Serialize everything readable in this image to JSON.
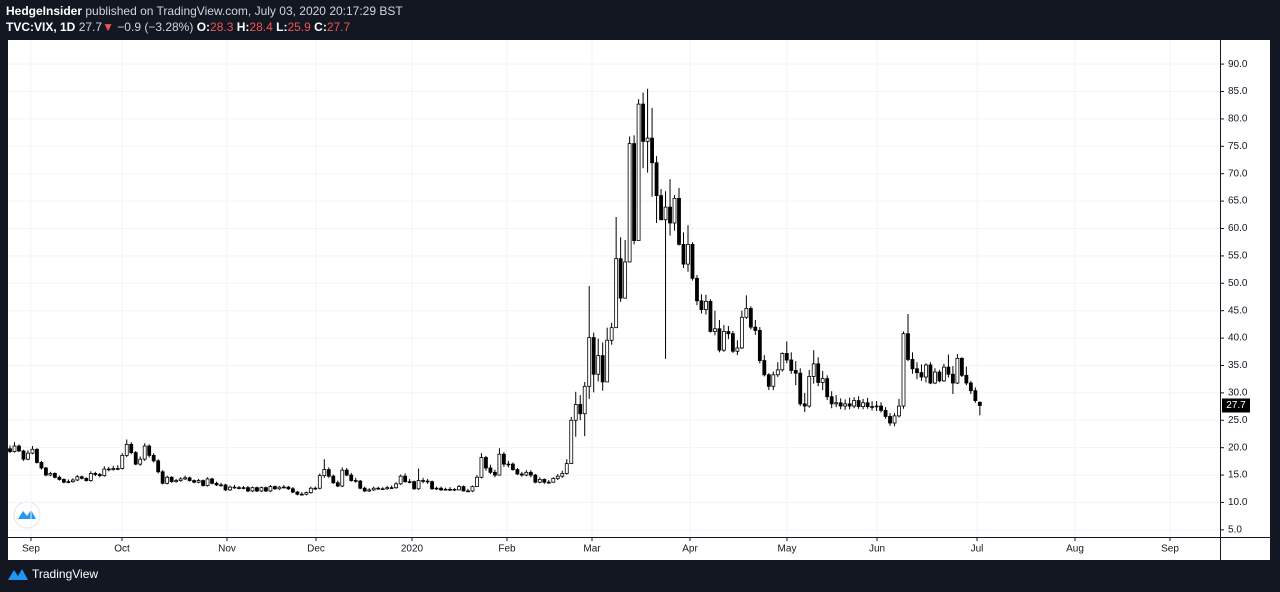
{
  "header": {
    "publisher": "HedgeInsider",
    "published": "published on TradingView.com, July 03, 2020 20:17:29 BST",
    "symbol": "TVC:VIX, 1D",
    "last": "27.7",
    "arrow": "▼",
    "change": "−0.9 (−3.28%)",
    "o_label": "O:",
    "o": "28.3",
    "h_label": "H:",
    "h": "28.4",
    "l_label": "L:",
    "l": "25.9",
    "c_label": "C:",
    "c": "27.7"
  },
  "footer": {
    "brand": "TradingView"
  },
  "chart_data": {
    "type": "candlestick",
    "up_color": "#ffffff",
    "down_color": "#000000",
    "wick_color": "#000000",
    "grid": true,
    "month_labels": [
      "Sep",
      "Oct",
      "Nov",
      "Dec",
      "2020",
      "Feb",
      "Mar",
      "Apr",
      "May",
      "Jun",
      "Jul",
      "Aug",
      "Sep"
    ],
    "ylim": [
      3.7,
      94.4
    ],
    "yticks": [
      {
        "value": 5,
        "label": "5.0"
      },
      {
        "value": 10,
        "label": "10.0"
      },
      {
        "value": 15,
        "label": "15.0"
      },
      {
        "value": 20,
        "label": "20.0"
      },
      {
        "value": 25,
        "label": "25.0"
      },
      {
        "value": 30,
        "label": "30.0"
      },
      {
        "value": 35,
        "label": "35.0"
      },
      {
        "value": 40,
        "label": "40.0"
      },
      {
        "value": 45,
        "label": "45.0"
      },
      {
        "value": 50,
        "label": "50.0"
      },
      {
        "value": 55,
        "label": "55.0"
      },
      {
        "value": 60,
        "label": "60.0"
      },
      {
        "value": 65,
        "label": "65.0"
      },
      {
        "value": 70,
        "label": "70.0"
      },
      {
        "value": 75,
        "label": "75.0"
      },
      {
        "value": 80,
        "label": "80.0"
      },
      {
        "value": 85,
        "label": "85.0"
      },
      {
        "value": 90,
        "label": "90.0"
      }
    ],
    "open": [
      19.8,
      19.3,
      20.3,
      19.4,
      17.9,
      19.0,
      19.7,
      17.3,
      16.3,
      15.0,
      15.3,
      14.6,
      14.2,
      13.7,
      13.8,
      14.1,
      14.7,
      14.4,
      14.0,
      15.3,
      15.1,
      14.9,
      16.1,
      16.0,
      16.2,
      16.2,
      18.6,
      20.6,
      19.1,
      17.0,
      17.9,
      20.3,
      18.6,
      17.6,
      15.6,
      13.5,
      14.6,
      13.8,
      14.0,
      14.3,
      14.5,
      14.0,
      13.7,
      14.0,
      13.1,
      14.3,
      13.5,
      13.2,
      13.2,
      12.3,
      12.8,
      12.7,
      12.6,
      12.7,
      12.1,
      12.7,
      12.1,
      12.7,
      12.1,
      12.9,
      12.5,
      12.8,
      12.8,
      12.5,
      11.9,
      11.5,
      11.5,
      11.8,
      12.6,
      12.6,
      14.9,
      16.0,
      14.8,
      13.6,
      13.0,
      15.9,
      15.0,
      14.0,
      13.9,
      12.6,
      12.1,
      12.3,
      12.6,
      12.5,
      12.5,
      12.7,
      12.7,
      13.4,
      14.8,
      13.8,
      13.8,
      12.5,
      14.0,
      13.9,
      13.8,
      12.5,
      12.6,
      12.3,
      12.4,
      12.4,
      12.3,
      12.9,
      12.1,
      12.1,
      12.9,
      14.6,
      18.2,
      16.3,
      15.5,
      15.0,
      18.8,
      17.0,
      17.0,
      16.0,
      15.2,
      15.0,
      15.5,
      15.0,
      13.7,
      14.2,
      13.7,
      13.7,
      14.4,
      14.8,
      15.3,
      17.1,
      25.0,
      27.9,
      26.2,
      31.2,
      40.1,
      33.4,
      36.8,
      32.0,
      39.6,
      41.9,
      54.5,
      47.3,
      53.9,
      75.5,
      57.8,
      82.7,
      75.9,
      76.5,
      72.0,
      66.0,
      61.6,
      63.9,
      61.0,
      65.5,
      57.1,
      53.5,
      57.1,
      50.9,
      46.8,
      45.2,
      46.7,
      41.2,
      41.7,
      37.8,
      41.2,
      40.8,
      37.6,
      38.2,
      43.8,
      45.4,
      42.0,
      41.4,
      35.9,
      33.3,
      31.2,
      33.3,
      34.2,
      37.2,
      36.0,
      34.1,
      33.6,
      28.0,
      27.6,
      33.0,
      35.3,
      31.9,
      32.6,
      29.3,
      28.0,
      28.2,
      27.6,
      28.0,
      27.6,
      28.6,
      27.5,
      28.2,
      27.5,
      27.5,
      27.6,
      26.8,
      25.7,
      24.5,
      25.8,
      27.6,
      40.8,
      36.1,
      34.4,
      33.7,
      32.9,
      35.1,
      31.8,
      33.8,
      32.2,
      34.7,
      33.4,
      31.8,
      36.3,
      33.2,
      31.8,
      30.4,
      28.3
    ],
    "high": [
      20.4,
      21.0,
      20.6,
      19.6,
      19.5,
      20.3,
      19.9,
      17.6,
      16.5,
      15.6,
      15.5,
      14.9,
      14.4,
      14.2,
      14.4,
      15.0,
      14.9,
      14.6,
      15.7,
      15.6,
      15.4,
      16.6,
      16.5,
      16.7,
      16.8,
      19.0,
      21.5,
      21.0,
      19.4,
      18.4,
      20.8,
      20.6,
      19.0,
      17.9,
      15.9,
      14.9,
      14.8,
      14.3,
      14.6,
      14.9,
      14.7,
      14.2,
      14.3,
      14.2,
      14.6,
      14.5,
      13.8,
      13.6,
      13.4,
      13.1,
      13.2,
      13.0,
      13.0,
      13.0,
      12.9,
      12.9,
      12.9,
      12.9,
      13.2,
      13.1,
      13.0,
      13.2,
      13.0,
      12.8,
      12.1,
      11.9,
      12.0,
      12.9,
      12.9,
      15.3,
      17.9,
      16.4,
      15.1,
      14.0,
      16.4,
      16.3,
      15.4,
      14.5,
      14.1,
      12.9,
      12.6,
      12.9,
      12.9,
      12.8,
      13.0,
      13.1,
      13.7,
      15.1,
      15.3,
      14.3,
      14.0,
      16.2,
      14.5,
      14.3,
      14.0,
      12.9,
      12.9,
      12.7,
      12.8,
      12.6,
      13.2,
      13.1,
      12.5,
      13.1,
      15.0,
      19.0,
      18.5,
      16.9,
      16.0,
      19.9,
      19.2,
      17.6,
      17.3,
      16.3,
      15.6,
      15.9,
      15.9,
      15.2,
      14.6,
      14.4,
      14.1,
      14.6,
      15.2,
      15.8,
      17.9,
      25.6,
      30.2,
      29.6,
      32.0,
      49.5,
      41.0,
      39.9,
      39.2,
      41.9,
      42.8,
      62.1,
      58.4,
      57.9,
      76.8,
      77.0,
      83.6,
      84.8,
      85.5,
      82.0,
      73.2,
      67.2,
      66.8,
      69.0,
      66.1,
      67.4,
      59.3,
      60.6,
      57.5,
      51.5,
      48.0,
      47.9,
      47.1,
      45.0,
      43.3,
      42.4,
      42.2,
      41.3,
      39.6,
      45.0,
      47.8,
      45.8,
      43.3,
      42.0,
      36.9,
      33.6,
      33.9,
      35.6,
      37.4,
      39.4,
      37.4,
      35.8,
      34.5,
      30.0,
      34.2,
      37.8,
      36.5,
      34.0,
      33.2,
      30.3,
      29.6,
      29.0,
      28.8,
      29.1,
      29.2,
      29.4,
      28.9,
      29.1,
      28.5,
      28.5,
      28.3,
      27.4,
      26.3,
      26.3,
      28.9,
      41.2,
      44.4,
      37.4,
      35.6,
      35.2,
      35.4,
      35.6,
      34.5,
      34.2,
      35.3,
      37.0,
      34.9,
      37.1,
      36.5,
      34.8,
      32.2,
      31.0,
      28.4
    ],
    "low": [
      19.0,
      19.1,
      19.2,
      17.6,
      17.7,
      18.8,
      17.1,
      16.0,
      14.8,
      14.8,
      14.4,
      14.0,
      13.5,
      13.5,
      13.6,
      13.9,
      14.2,
      13.8,
      13.8,
      14.8,
      14.6,
      14.7,
      15.7,
      15.8,
      15.9,
      16.0,
      18.3,
      18.8,
      16.8,
      16.7,
      17.6,
      18.2,
      17.3,
      15.3,
      13.3,
      13.3,
      13.6,
      13.6,
      13.8,
      14.1,
      13.8,
      13.5,
      13.5,
      12.9,
      12.9,
      13.3,
      13.0,
      12.9,
      12.1,
      12.1,
      12.5,
      12.4,
      12.4,
      11.9,
      11.9,
      11.9,
      11.9,
      11.9,
      11.9,
      12.3,
      12.3,
      12.6,
      12.3,
      11.7,
      11.3,
      11.3,
      11.3,
      11.6,
      12.3,
      12.4,
      14.5,
      14.5,
      13.4,
      12.8,
      12.8,
      14.8,
      13.8,
      13.6,
      12.4,
      11.9,
      11.9,
      12.1,
      12.3,
      12.3,
      12.3,
      12.5,
      12.5,
      13.2,
      13.6,
      13.5,
      12.3,
      12.3,
      13.5,
      13.4,
      12.3,
      12.3,
      12.1,
      12.2,
      12.1,
      12.1,
      12.2,
      12.0,
      11.9,
      11.9,
      12.8,
      14.4,
      15.8,
      15.2,
      14.6,
      14.9,
      16.5,
      16.4,
      15.8,
      15.0,
      14.7,
      14.8,
      14.6,
      13.5,
      13.5,
      13.4,
      13.4,
      13.6,
      14.1,
      14.5,
      15.1,
      17.0,
      22.0,
      25.0,
      22.1,
      28.9,
      30.1,
      32.1,
      30.4,
      32.0,
      38.8,
      41.9,
      46.6,
      47.2,
      53.8,
      57.1,
      57.8,
      71.0,
      70.2,
      65.8,
      61.0,
      61.5,
      36.2,
      58.7,
      59.6,
      56.9,
      52.8,
      52.1,
      50.5,
      46.0,
      44.5,
      44.3,
      41.0,
      40.5,
      37.4,
      37.5,
      39.8,
      37.3,
      36.9,
      38.0,
      43.5,
      41.6,
      40.6,
      35.4,
      33.0,
      30.5,
      30.5,
      32.9,
      33.9,
      35.4,
      33.5,
      31.4,
      27.6,
      26.5,
      27.3,
      31.7,
      31.2,
      30.5,
      28.7,
      27.2,
      27.4,
      27.0,
      26.9,
      27.0,
      27.2,
      27.1,
      27.0,
      27.1,
      26.8,
      26.7,
      26.4,
      25.3,
      24.0,
      23.9,
      25.5,
      27.1,
      35.8,
      33.5,
      32.5,
      32.2,
      31.9,
      31.6,
      31.6,
      31.9,
      32.0,
      32.8,
      29.8,
      31.6,
      32.9,
      31.4,
      29.8,
      28.2,
      25.9
    ],
    "close": [
      19.3,
      20.3,
      19.4,
      17.9,
      19.0,
      19.7,
      17.3,
      16.3,
      15.0,
      15.3,
      14.6,
      14.2,
      13.7,
      13.8,
      14.1,
      14.7,
      14.4,
      14.0,
      15.3,
      15.1,
      14.9,
      16.1,
      16.0,
      16.2,
      16.2,
      18.6,
      20.6,
      19.1,
      17.0,
      17.9,
      20.3,
      18.6,
      17.6,
      15.6,
      13.5,
      14.6,
      13.8,
      14.0,
      14.3,
      14.5,
      14.0,
      13.7,
      14.0,
      13.1,
      14.3,
      13.5,
      13.2,
      13.2,
      12.3,
      12.8,
      12.7,
      12.6,
      12.7,
      12.1,
      12.7,
      12.1,
      12.7,
      12.1,
      12.9,
      12.5,
      12.8,
      12.8,
      12.5,
      11.9,
      11.5,
      11.5,
      11.8,
      12.6,
      12.6,
      14.9,
      16.0,
      14.8,
      13.6,
      13.0,
      15.9,
      15.0,
      14.0,
      13.9,
      12.6,
      12.1,
      12.3,
      12.6,
      12.5,
      12.5,
      12.7,
      12.7,
      13.4,
      14.8,
      13.8,
      13.8,
      12.5,
      14.0,
      13.9,
      13.8,
      12.5,
      12.6,
      12.3,
      12.4,
      12.4,
      12.3,
      12.9,
      12.1,
      12.1,
      12.9,
      14.6,
      18.2,
      16.3,
      15.5,
      15.0,
      18.8,
      17.0,
      17.0,
      16.0,
      15.2,
      15.0,
      15.5,
      15.0,
      13.7,
      14.2,
      13.7,
      13.7,
      14.4,
      14.8,
      15.3,
      17.1,
      25.0,
      27.9,
      26.2,
      31.2,
      40.1,
      33.4,
      36.8,
      32.0,
      39.6,
      41.9,
      54.5,
      47.3,
      53.9,
      75.5,
      57.8,
      82.7,
      75.9,
      76.5,
      72.0,
      66.0,
      61.6,
      63.9,
      61.0,
      65.5,
      57.1,
      53.5,
      57.1,
      50.9,
      46.8,
      45.2,
      46.7,
      41.2,
      41.7,
      37.8,
      41.2,
      40.8,
      37.6,
      38.2,
      43.8,
      45.4,
      42.0,
      41.4,
      35.9,
      33.3,
      31.2,
      33.3,
      34.2,
      37.2,
      36.0,
      34.1,
      33.6,
      28.0,
      27.6,
      33.0,
      35.3,
      31.9,
      32.6,
      29.3,
      28.0,
      28.2,
      27.6,
      28.0,
      27.6,
      28.6,
      27.5,
      28.2,
      27.5,
      27.5,
      27.6,
      26.8,
      25.7,
      24.5,
      25.8,
      27.6,
      40.8,
      36.1,
      34.4,
      33.7,
      32.9,
      35.1,
      31.8,
      33.8,
      32.2,
      34.7,
      33.4,
      31.8,
      36.3,
      33.2,
      31.8,
      30.4,
      28.6,
      27.7
    ]
  }
}
